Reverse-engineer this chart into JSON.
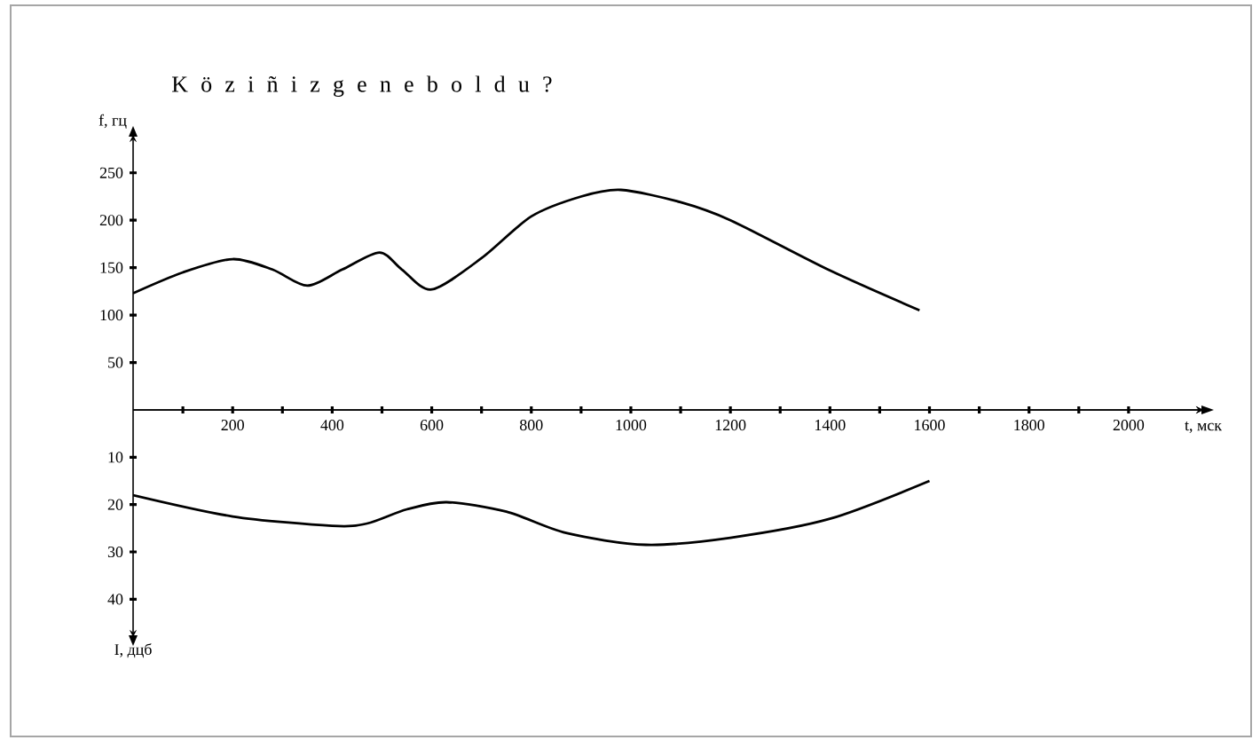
{
  "chart_data": [
    {
      "type": "line",
      "title": "K ö z i ñ i z g e   n e   b o l d u ?",
      "xlabel": "t, мск",
      "ylabel": "f, гц",
      "x": [
        0,
        100,
        200,
        280,
        350,
        420,
        495,
        540,
        600,
        700,
        800,
        900,
        980,
        1100,
        1200,
        1400,
        1580
      ],
      "values": [
        123,
        145,
        159,
        148,
        131,
        148,
        166,
        148,
        127,
        160,
        204,
        225,
        232,
        219,
        200,
        147,
        105
      ],
      "color": "#000000",
      "xlim": [
        0,
        2150
      ],
      "xticks": [
        {
          "value": 100,
          "label": null
        },
        200,
        {
          "value": 300,
          "label": null
        },
        400,
        {
          "value": 500,
          "label": null
        },
        600,
        {
          "value": 700,
          "label": null
        },
        800,
        {
          "value": 900,
          "label": null
        },
        1000,
        {
          "value": 1100,
          "label": null
        },
        1200,
        {
          "value": 1300,
          "label": null
        },
        1400,
        {
          "value": 1500,
          "label": null
        },
        1600,
        {
          "value": 1700,
          "label": null
        },
        1800,
        {
          "value": 1900,
          "label": null
        },
        2000
      ],
      "ylim": [
        0,
        290
      ],
      "yticks": [
        50,
        100,
        150,
        200,
        250
      ]
    },
    {
      "type": "line",
      "ylabel": "I, дцб",
      "x": [
        0,
        200,
        400,
        470,
        550,
        630,
        750,
        870,
        1030,
        1200,
        1400,
        1600
      ],
      "values": [
        18,
        22.5,
        24.5,
        24,
        21,
        19.5,
        21.5,
        26,
        28.5,
        27,
        23,
        15
      ],
      "color": "#000000",
      "xlim": [
        0,
        2150
      ],
      "ylim": [
        48,
        0
      ],
      "yticks": [
        10,
        20,
        30,
        40
      ],
      "tick_labels": "y"
    }
  ]
}
